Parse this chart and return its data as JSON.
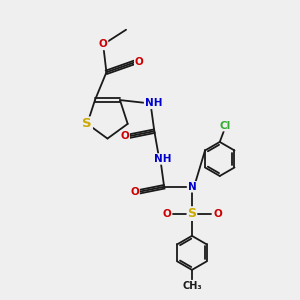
{
  "background_color": "#efefef",
  "figsize": [
    3.0,
    3.0
  ],
  "dpi": 100,
  "bond_color": "#1a1a1a",
  "bond_lw": 1.3,
  "S_color": "#ccaa00",
  "N_color": "#0000cc",
  "O_color": "#cc0000",
  "Cl_color": "#33aa33",
  "H_color": "#4a9090",
  "C_color": "#1a1a1a",
  "font_size": 7.5,
  "xlim": [
    0.0,
    10.0
  ],
  "ylim": [
    0.0,
    10.0
  ]
}
